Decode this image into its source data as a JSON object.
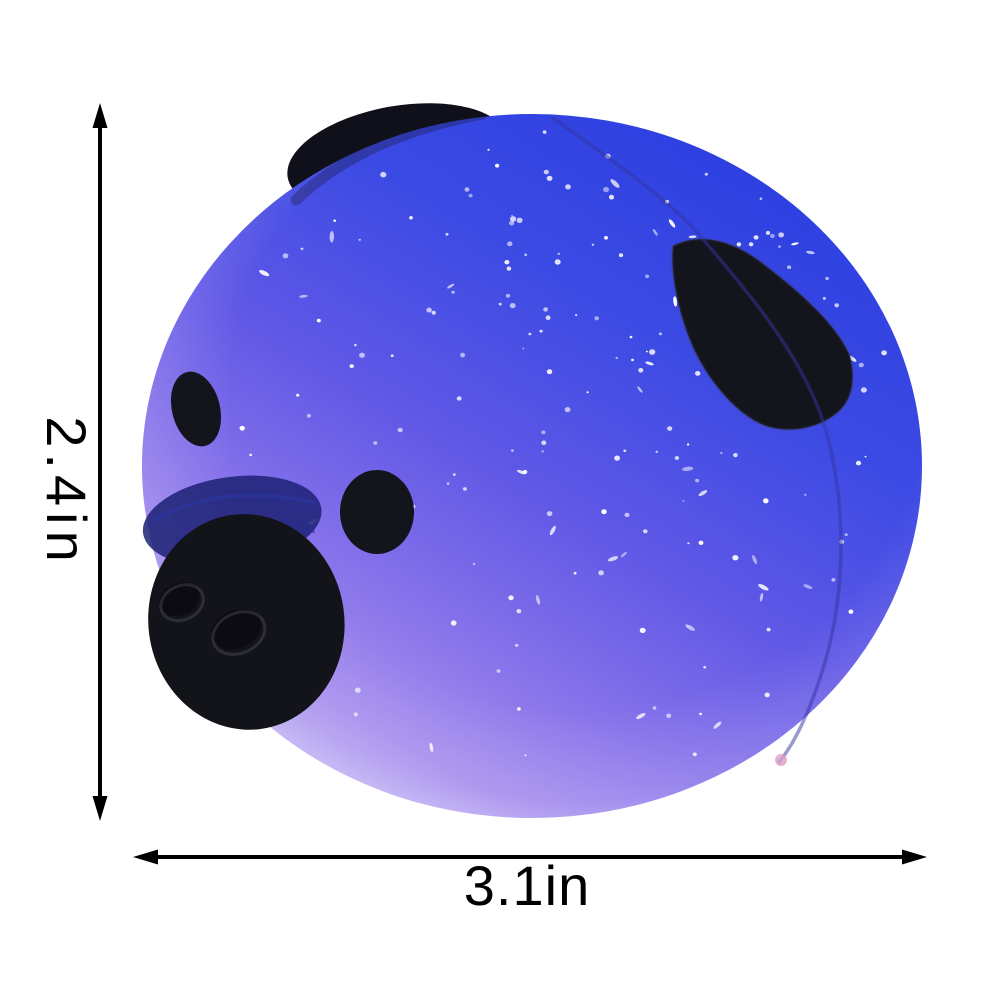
{
  "image": {
    "type": "product-photo",
    "background": "#ffffff"
  },
  "annotations": {
    "height": {
      "label": "2.4in"
    },
    "width": {
      "label": "3.1in"
    },
    "arrow_color": "#000000",
    "text_color": "#000000"
  },
  "toy": {
    "body_gradient": [
      "#2c3fe0",
      "#3d4be4",
      "#6058e6",
      "#8672ea",
      "#a78fee",
      "#cabdf4"
    ],
    "rim_tint": "#c4b6f3",
    "feature_color": "#14141d",
    "snout_color": "#13131a",
    "snout_smear_color": "#1b2173",
    "nostril_color": "#0b0b11",
    "seam_color": "#33339f",
    "edge_shadow_color": "#15152e",
    "speckle_color": "#ffffff",
    "nub_color": "#d9a0c8",
    "star_count": 190,
    "star_seed": 7
  }
}
